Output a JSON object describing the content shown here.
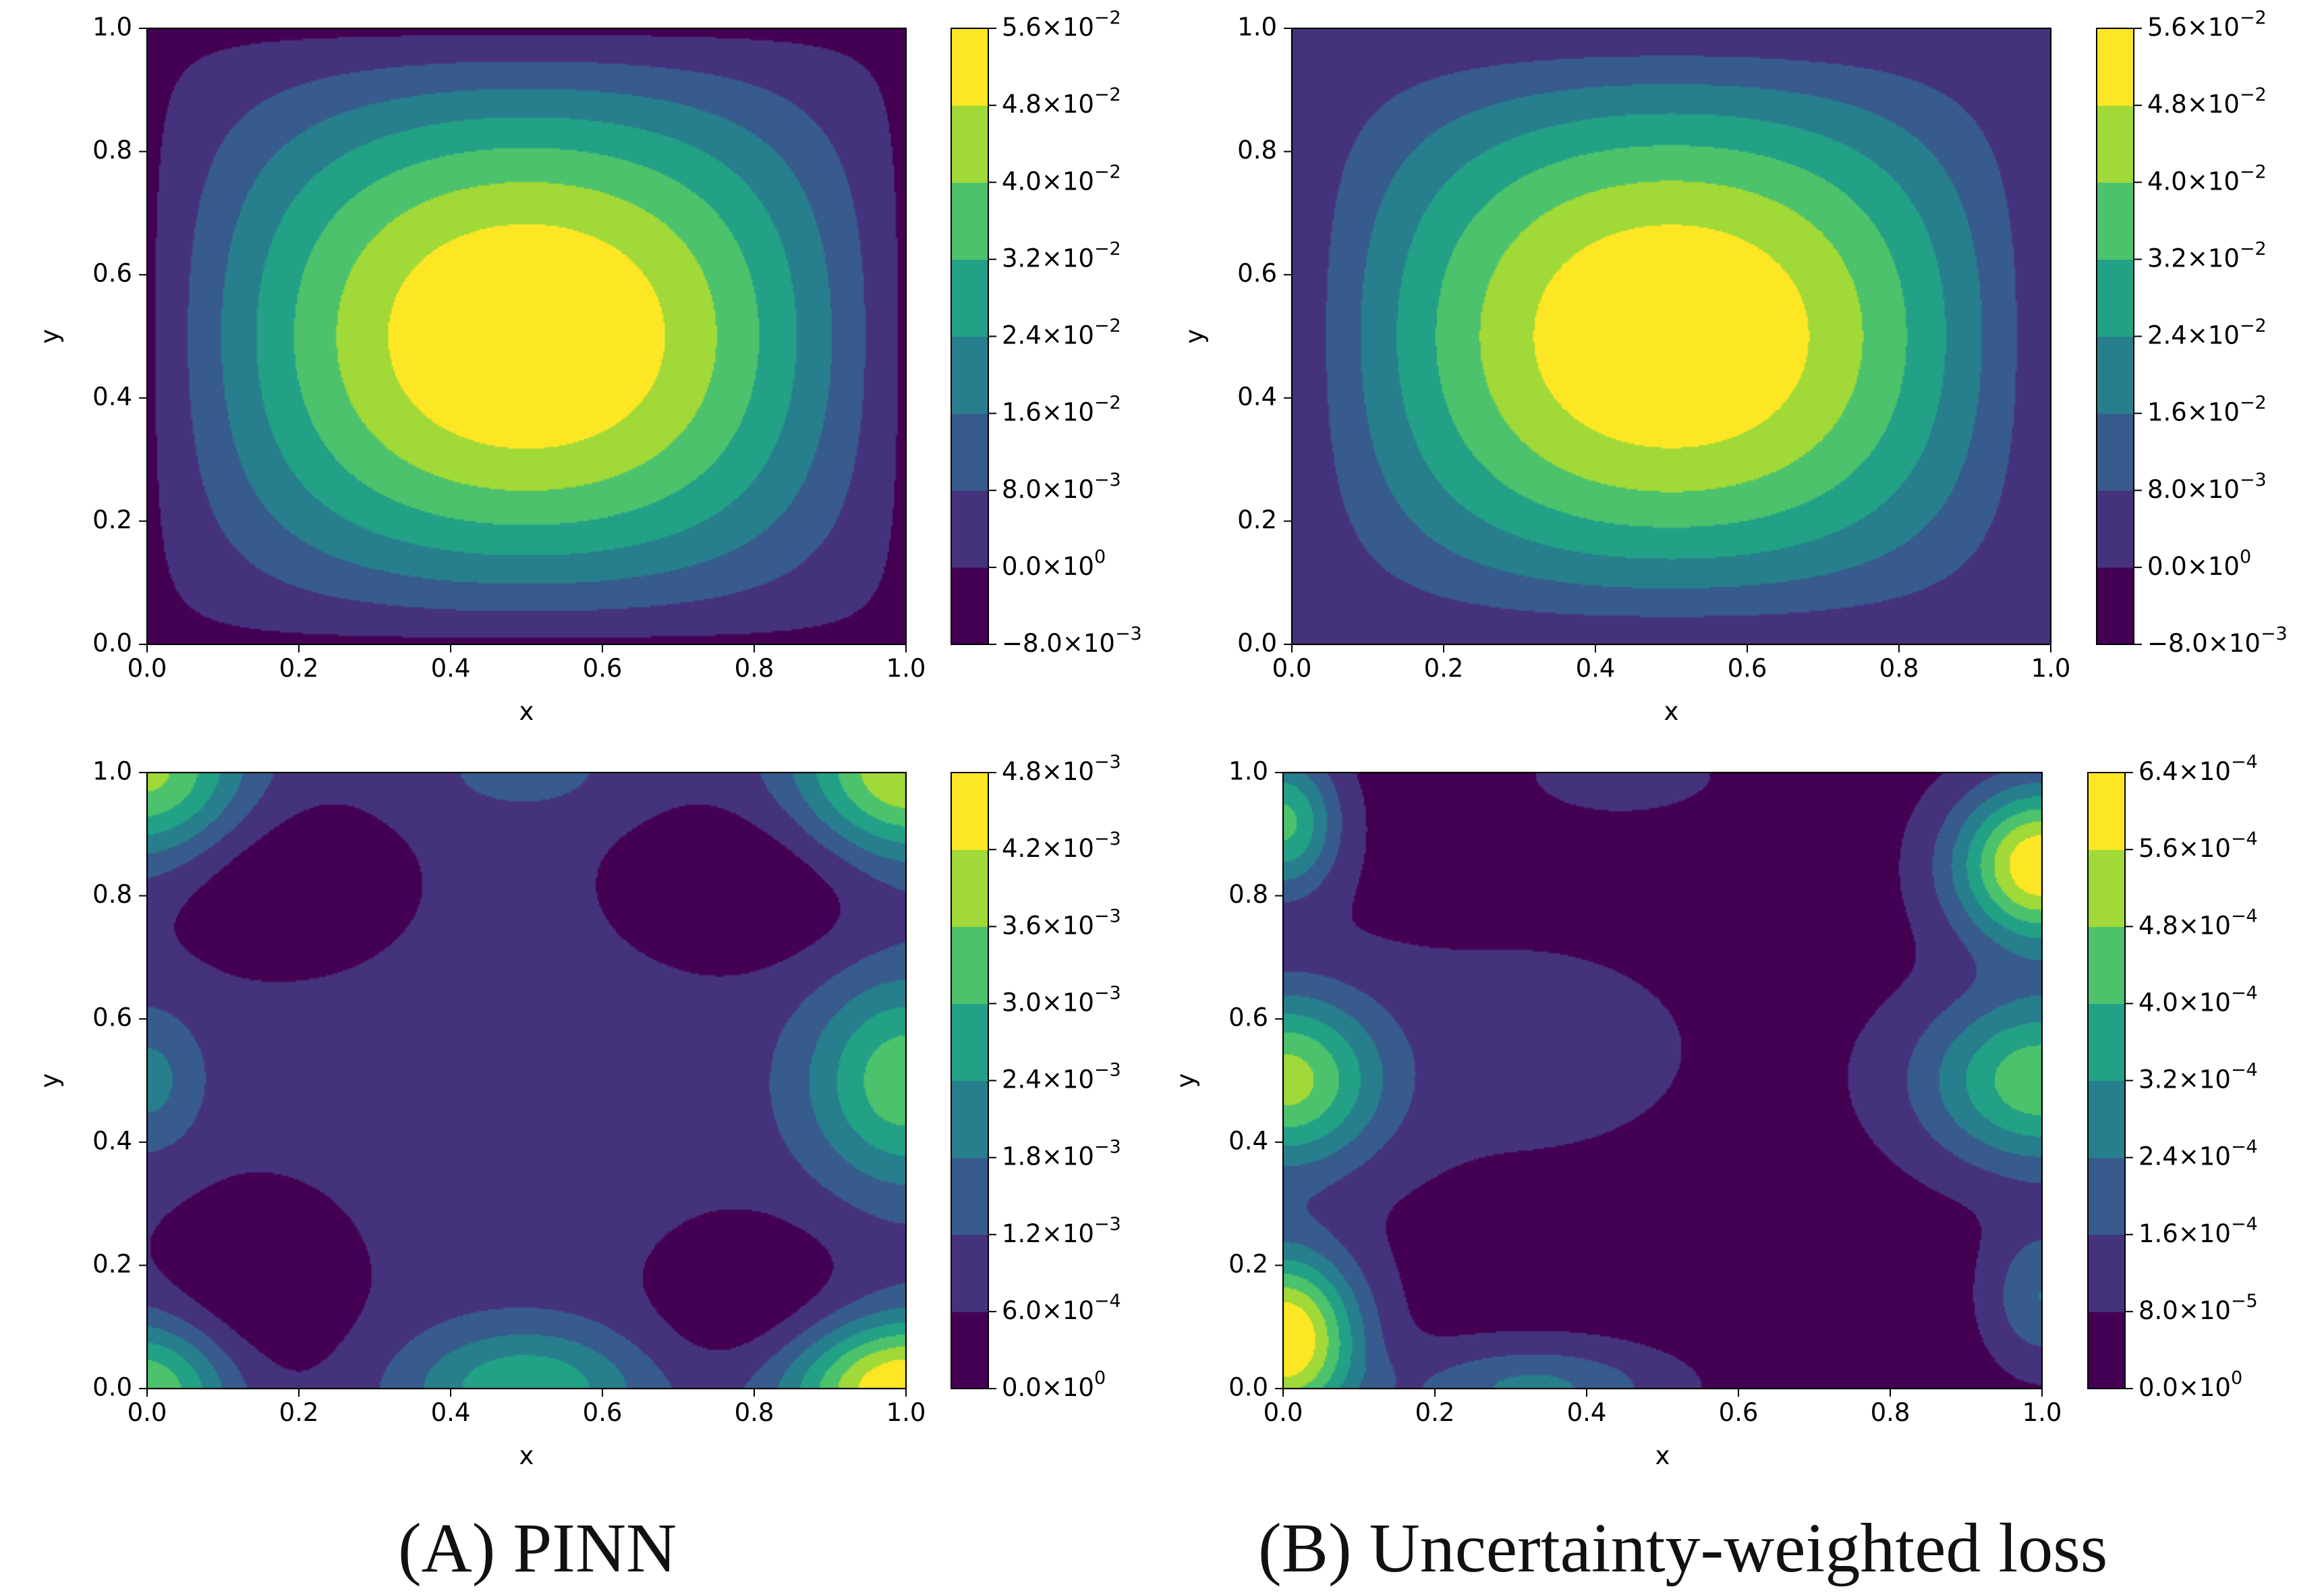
{
  "figure": {
    "caption_a": "(A) PINN",
    "caption_b": "(B) Uncertainty-weighted loss"
  },
  "chart_data": [
    {
      "id": "A-solution",
      "type": "heatmap",
      "subtype": "filled-contour",
      "title": "",
      "xlabel": "x",
      "ylabel": "y",
      "xlim": [
        0.0,
        1.0
      ],
      "ylim": [
        0.0,
        1.0
      ],
      "x_ticks": [
        "0.0",
        "0.2",
        "0.4",
        "0.6",
        "0.8",
        "1.0"
      ],
      "y_ticks": [
        "0.0",
        "0.2",
        "0.4",
        "0.6",
        "0.8",
        "1.0"
      ],
      "colormap": "viridis",
      "field": {
        "kind": "sine-product",
        "amplitude": 0.0575,
        "edge_bias": -0.002
      },
      "colorbar": {
        "levels": [
          -0.008,
          0.0,
          0.008,
          0.016,
          0.024,
          0.032,
          0.04,
          0.048,
          0.056
        ],
        "labels": [
          {
            "m": "−8.0",
            "e": "−3"
          },
          {
            "m": "0.0",
            "e": "0"
          },
          {
            "m": "8.0",
            "e": "−3"
          },
          {
            "m": "1.6",
            "e": "−2"
          },
          {
            "m": "2.4",
            "e": "−2"
          },
          {
            "m": "3.2",
            "e": "−2"
          },
          {
            "m": "4.0",
            "e": "−2"
          },
          {
            "m": "4.8",
            "e": "−2"
          },
          {
            "m": "5.6",
            "e": "−2"
          }
        ]
      }
    },
    {
      "id": "B-solution",
      "type": "heatmap",
      "subtype": "filled-contour",
      "title": "",
      "xlabel": "x",
      "ylabel": "y",
      "xlim": [
        0.0,
        1.0
      ],
      "ylim": [
        0.0,
        1.0
      ],
      "x_ticks": [
        "0.0",
        "0.2",
        "0.4",
        "0.6",
        "0.8",
        "1.0"
      ],
      "y_ticks": [
        "0.0",
        "0.2",
        "0.4",
        "0.6",
        "0.8",
        "1.0"
      ],
      "colormap": "viridis",
      "field": {
        "kind": "sine-product",
        "amplitude": 0.057,
        "edge_bias": 0.0
      },
      "colorbar": {
        "levels": [
          -0.008,
          0.0,
          0.008,
          0.016,
          0.024,
          0.032,
          0.04,
          0.048,
          0.056
        ],
        "labels": [
          {
            "m": "−8.0",
            "e": "−3"
          },
          {
            "m": "0.0",
            "e": "0"
          },
          {
            "m": "8.0",
            "e": "−3"
          },
          {
            "m": "1.6",
            "e": "−2"
          },
          {
            "m": "2.4",
            "e": "−2"
          },
          {
            "m": "3.2",
            "e": "−2"
          },
          {
            "m": "4.0",
            "e": "−2"
          },
          {
            "m": "4.8",
            "e": "−2"
          },
          {
            "m": "5.6",
            "e": "−2"
          }
        ]
      }
    },
    {
      "id": "A-error",
      "type": "heatmap",
      "subtype": "filled-contour",
      "title": "",
      "xlabel": "x",
      "ylabel": "y",
      "xlim": [
        0.0,
        1.0
      ],
      "ylim": [
        0.0,
        1.0
      ],
      "x_ticks": [
        "0.0",
        "0.2",
        "0.4",
        "0.6",
        "0.8",
        "1.0"
      ],
      "y_ticks": [
        "0.0",
        "0.2",
        "0.4",
        "0.6",
        "0.8",
        "1.0"
      ],
      "colormap": "viridis",
      "field": {
        "kind": "bumps",
        "base": 0.00085,
        "bumps": [
          {
            "x": 1.0,
            "y": 0.0,
            "amp": 0.0041,
            "sx": 0.11,
            "sy": 0.08
          },
          {
            "x": 1.0,
            "y": 1.0,
            "amp": 0.0034,
            "sx": 0.1,
            "sy": 0.1
          },
          {
            "x": 0.0,
            "y": 1.0,
            "amp": 0.003,
            "sx": 0.09,
            "sy": 0.1
          },
          {
            "x": 0.0,
            "y": 0.0,
            "amp": 0.0028,
            "sx": 0.08,
            "sy": 0.08
          },
          {
            "x": 0.5,
            "y": 0.0,
            "amp": 0.0021,
            "sx": 0.11,
            "sy": 0.07
          },
          {
            "x": 0.5,
            "y": 1.0,
            "amp": 0.0006,
            "sx": 0.09,
            "sy": 0.05
          },
          {
            "x": 1.0,
            "y": 0.5,
            "amp": 0.0026,
            "sx": 0.09,
            "sy": 0.12
          },
          {
            "x": 0.0,
            "y": 0.5,
            "amp": 0.0012,
            "sx": 0.05,
            "sy": 0.08
          },
          {
            "x": 0.17,
            "y": 0.82,
            "amp": -0.0009,
            "sx": 0.12,
            "sy": 0.1
          },
          {
            "x": 0.8,
            "y": 0.82,
            "amp": -0.0009,
            "sx": 0.13,
            "sy": 0.1
          },
          {
            "x": 0.14,
            "y": 0.16,
            "amp": -0.0009,
            "sx": 0.1,
            "sy": 0.12
          },
          {
            "x": 0.8,
            "y": 0.14,
            "amp": -0.0009,
            "sx": 0.1,
            "sy": 0.1
          }
        ]
      },
      "colorbar": {
        "levels": [
          0.0,
          0.0006,
          0.0012,
          0.0018,
          0.0024,
          0.003,
          0.0036,
          0.0042,
          0.0048
        ],
        "labels": [
          {
            "m": "0.0",
            "e": "0"
          },
          {
            "m": "6.0",
            "e": "−4"
          },
          {
            "m": "1.2",
            "e": "−3"
          },
          {
            "m": "1.8",
            "e": "−3"
          },
          {
            "m": "2.4",
            "e": "−3"
          },
          {
            "m": "3.0",
            "e": "−3"
          },
          {
            "m": "3.6",
            "e": "−3"
          },
          {
            "m": "4.2",
            "e": "−3"
          },
          {
            "m": "4.8",
            "e": "−3"
          }
        ]
      }
    },
    {
      "id": "B-error",
      "type": "heatmap",
      "subtype": "filled-contour",
      "title": "",
      "xlabel": "x",
      "ylabel": "y",
      "xlim": [
        0.0,
        1.0
      ],
      "ylim": [
        0.0,
        1.0
      ],
      "x_ticks": [
        "0.0",
        "0.2",
        "0.4",
        "0.6",
        "0.8",
        "1.0"
      ],
      "y_ticks": [
        "0.0",
        "0.2",
        "0.4",
        "0.6",
        "0.8",
        "1.0"
      ],
      "colormap": "viridis",
      "field": {
        "kind": "bumps",
        "base": 4e-05,
        "bumps": [
          {
            "x": 0.0,
            "y": 0.08,
            "amp": 0.00062,
            "sx": 0.07,
            "sy": 0.1
          },
          {
            "x": 0.0,
            "y": 0.5,
            "amp": 0.00045,
            "sx": 0.09,
            "sy": 0.1
          },
          {
            "x": 0.0,
            "y": 0.92,
            "amp": 0.00038,
            "sx": 0.05,
            "sy": 0.08
          },
          {
            "x": 1.0,
            "y": 0.85,
            "amp": 0.0006,
            "sx": 0.08,
            "sy": 0.09
          },
          {
            "x": 1.0,
            "y": 0.5,
            "amp": 0.00042,
            "sx": 0.11,
            "sy": 0.1
          },
          {
            "x": 1.0,
            "y": 0.15,
            "amp": 0.0002,
            "sx": 0.05,
            "sy": 0.08
          },
          {
            "x": 0.33,
            "y": 0.0,
            "amp": 0.00022,
            "sx": 0.12,
            "sy": 0.05
          },
          {
            "x": 0.3,
            "y": 0.55,
            "amp": 6e-05,
            "sx": 0.25,
            "sy": 0.18
          },
          {
            "x": 0.45,
            "y": 1.0,
            "amp": 6e-05,
            "sx": 0.12,
            "sy": 0.06
          }
        ]
      },
      "colorbar": {
        "levels": [
          0.0,
          8e-05,
          0.00016,
          0.00024,
          0.00032,
          0.0004,
          0.00048,
          0.00056,
          0.00064
        ],
        "labels": [
          {
            "m": "0.0",
            "e": "0"
          },
          {
            "m": "8.0",
            "e": "−5"
          },
          {
            "m": "1.6",
            "e": "−4"
          },
          {
            "m": "2.4",
            "e": "−4"
          },
          {
            "m": "3.2",
            "e": "−4"
          },
          {
            "m": "4.0",
            "e": "−4"
          },
          {
            "m": "4.8",
            "e": "−4"
          },
          {
            "m": "5.6",
            "e": "−4"
          },
          {
            "m": "6.4",
            "e": "−4"
          }
        ]
      }
    }
  ]
}
